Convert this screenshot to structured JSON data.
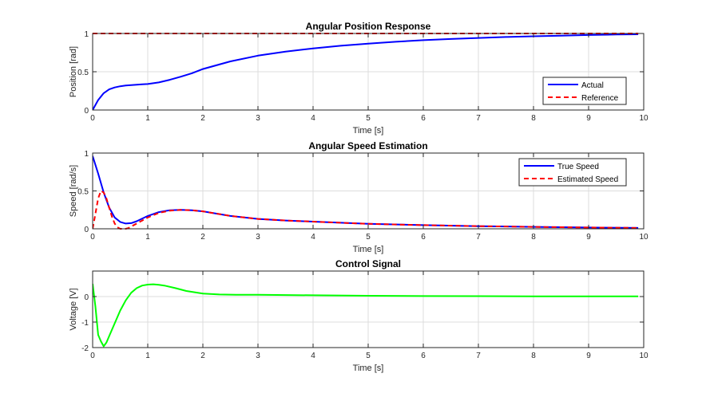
{
  "chart_data": [
    {
      "type": "line",
      "title": "Angular Position Response",
      "xlabel": "Time [s]",
      "ylabel": "Position [rad]",
      "xlim": [
        0,
        10
      ],
      "ylim": [
        0,
        1
      ],
      "xticks": [
        "0",
        "1",
        "2",
        "3",
        "4",
        "5",
        "6",
        "7",
        "8",
        "9",
        "10"
      ],
      "yticks": [
        "0",
        "0.5",
        "1"
      ],
      "grid": true,
      "legend": "bottom-right",
      "series": [
        {
          "name": "Actual",
          "color": "#0000ff",
          "style": "solid",
          "x": [
            0,
            0.1,
            0.2,
            0.3,
            0.4,
            0.5,
            0.6,
            0.7,
            0.8,
            0.9,
            1.0,
            1.2,
            1.4,
            1.6,
            1.8,
            2.0,
            2.5,
            3.0,
            3.5,
            4.0,
            4.5,
            5.0,
            5.5,
            6.0,
            6.5,
            7.0,
            7.5,
            8.0,
            8.5,
            9.0,
            9.5,
            9.9
          ],
          "y": [
            0,
            0.13,
            0.22,
            0.27,
            0.295,
            0.31,
            0.32,
            0.325,
            0.33,
            0.335,
            0.34,
            0.36,
            0.395,
            0.435,
            0.48,
            0.535,
            0.635,
            0.71,
            0.762,
            0.805,
            0.84,
            0.868,
            0.892,
            0.912,
            0.928,
            0.942,
            0.954,
            0.964,
            0.972,
            0.98,
            0.986,
            0.99
          ]
        },
        {
          "name": "Reference",
          "color": "#ff0000",
          "style": "dashed",
          "x": [
            0,
            9.9
          ],
          "y": [
            1,
            1
          ]
        }
      ]
    },
    {
      "type": "line",
      "title": "Angular Speed Estimation",
      "xlabel": "Time [s]",
      "ylabel": "Speed [rad/s]",
      "xlim": [
        0,
        10
      ],
      "ylim": [
        0,
        1
      ],
      "xticks": [
        "0",
        "1",
        "2",
        "3",
        "4",
        "5",
        "6",
        "7",
        "8",
        "9",
        "10"
      ],
      "yticks": [
        "0",
        "0.5",
        "1"
      ],
      "grid": true,
      "legend": "top-right",
      "series": [
        {
          "name": "True Speed",
          "color": "#0000ff",
          "style": "solid",
          "x": [
            0,
            0.1,
            0.2,
            0.3,
            0.4,
            0.5,
            0.6,
            0.7,
            0.8,
            1.0,
            1.2,
            1.4,
            1.6,
            1.8,
            2.0,
            2.5,
            3.0,
            3.5,
            4.0,
            4.5,
            5.0,
            6.0,
            7.0,
            8.0,
            9.0,
            9.9
          ],
          "y": [
            0.96,
            0.73,
            0.48,
            0.28,
            0.15,
            0.09,
            0.07,
            0.075,
            0.1,
            0.17,
            0.22,
            0.245,
            0.25,
            0.245,
            0.23,
            0.17,
            0.13,
            0.11,
            0.095,
            0.08,
            0.065,
            0.048,
            0.035,
            0.025,
            0.017,
            0.012
          ]
        },
        {
          "name": "Estimated Speed",
          "color": "#ff0000",
          "style": "dashed",
          "x": [
            0,
            0.05,
            0.1,
            0.15,
            0.2,
            0.25,
            0.3,
            0.35,
            0.4,
            0.45,
            0.5,
            0.55,
            0.6,
            0.65,
            0.7,
            0.8,
            0.9,
            1.0,
            1.2,
            1.4,
            1.6,
            1.8,
            2.0,
            2.5,
            3.0,
            3.5,
            4.0,
            4.5,
            5.0,
            6.0,
            7.0,
            8.0,
            9.0,
            9.9
          ],
          "y": [
            0,
            0.2,
            0.4,
            0.5,
            0.48,
            0.4,
            0.28,
            0.16,
            0.07,
            0.02,
            0.0,
            0.0,
            0.0,
            0.01,
            0.03,
            0.07,
            0.11,
            0.15,
            0.21,
            0.24,
            0.25,
            0.245,
            0.23,
            0.17,
            0.13,
            0.11,
            0.095,
            0.08,
            0.065,
            0.048,
            0.035,
            0.025,
            0.017,
            0.012
          ]
        }
      ]
    },
    {
      "type": "line",
      "title": "Control Signal",
      "xlabel": "Time [s]",
      "ylabel": "Voltage [V]",
      "xlim": [
        0,
        10
      ],
      "ylim": [
        -2,
        1
      ],
      "xticks": [
        "0",
        "1",
        "2",
        "3",
        "4",
        "5",
        "6",
        "7",
        "8",
        "9",
        "10"
      ],
      "yticks": [
        "-2",
        "-1",
        "0"
      ],
      "grid": true,
      "legend": "none",
      "series": [
        {
          "color": "#00ff00",
          "style": "solid",
          "x": [
            0,
            0.05,
            0.1,
            0.15,
            0.2,
            0.25,
            0.3,
            0.4,
            0.5,
            0.6,
            0.7,
            0.8,
            0.9,
            1.0,
            1.1,
            1.2,
            1.3,
            1.5,
            1.7,
            2.0,
            2.3,
            2.6,
            3.0,
            4.0,
            5.0,
            6.0,
            7.0,
            8.0,
            9.0,
            9.9
          ],
          "y": [
            0.5,
            -0.4,
            -1.5,
            -1.75,
            -1.95,
            -1.8,
            -1.55,
            -1.05,
            -0.55,
            -0.15,
            0.15,
            0.33,
            0.43,
            0.47,
            0.48,
            0.46,
            0.43,
            0.33,
            0.22,
            0.12,
            0.08,
            0.07,
            0.07,
            0.05,
            0.03,
            0.02,
            0.015,
            0.01,
            0.008,
            0.005
          ]
        }
      ]
    }
  ]
}
